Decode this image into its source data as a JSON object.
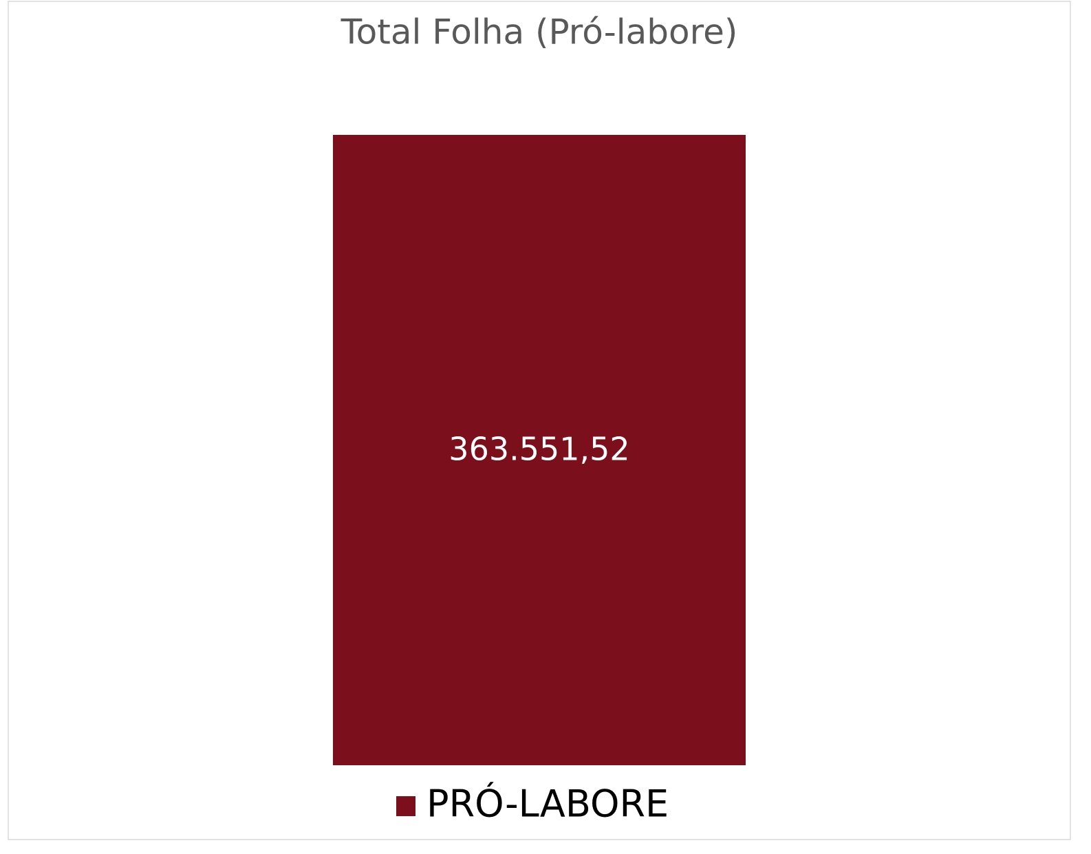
{
  "chart_data": {
    "type": "bar",
    "title": "Total Folha (Pró-labore)",
    "series": [
      {
        "name": "PRÓ-LABORE",
        "color": "#7b0f1b",
        "values": [
          363551.52
        ],
        "value_labels": [
          "363.551,52"
        ]
      }
    ]
  }
}
